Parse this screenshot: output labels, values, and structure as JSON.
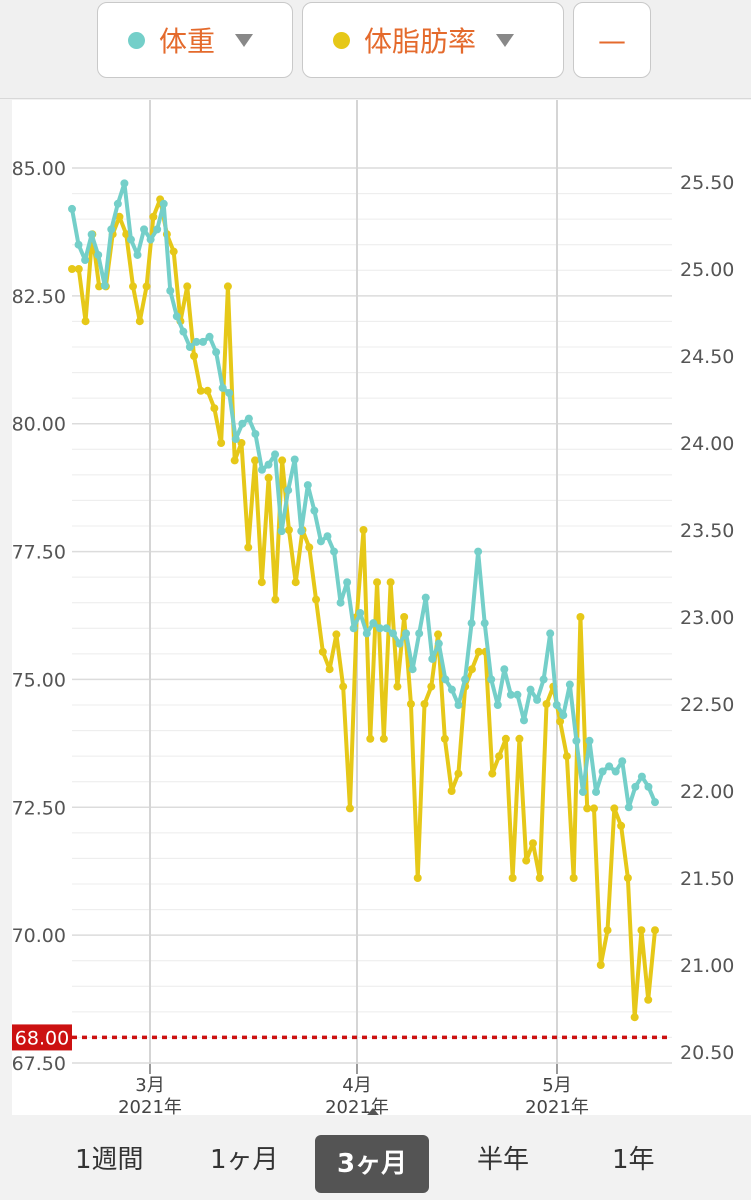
{
  "header": {
    "selector1": {
      "label": "体重",
      "dot_color": "#74cfc9"
    },
    "selector2": {
      "label": "体脂肪率",
      "dot_color": "#e6c818"
    },
    "selector3": {
      "label": "—"
    }
  },
  "periods": [
    "1週間",
    "1ヶ月",
    "3ヶ月",
    "半年",
    "1年"
  ],
  "active_period": "3ヶ月",
  "chart_data": {
    "type": "line",
    "left_axis": {
      "ticks": [
        "85.00",
        "82.50",
        "80.00",
        "77.50",
        "75.00",
        "72.50",
        "70.00",
        "67.50"
      ],
      "min": 67.5,
      "max": 85.0
    },
    "right_axis": {
      "ticks": [
        "25.50",
        "25.00",
        "24.50",
        "24.00",
        "23.50",
        "23.00",
        "22.50",
        "22.00",
        "21.50",
        "21.00",
        "20.50"
      ],
      "min": 20.5,
      "max": 25.5
    },
    "x_labels": [
      {
        "month": "3月",
        "year": "2021年"
      },
      {
        "month": "4月",
        "year": "2021年"
      },
      {
        "month": "5月",
        "year": "2021年"
      }
    ],
    "target_line": {
      "value": 68.0,
      "label": "68.00",
      "color": "#cc1111"
    },
    "series": [
      {
        "name": "体重",
        "color": "#74cfc9",
        "axis": "left",
        "values": [
          84.2,
          83.5,
          83.2,
          83.7,
          83.3,
          82.7,
          83.8,
          84.3,
          84.7,
          83.6,
          83.3,
          83.8,
          83.6,
          83.8,
          84.3,
          82.6,
          82.1,
          81.8,
          81.5,
          81.6,
          81.6,
          81.7,
          81.4,
          80.7,
          80.6,
          79.7,
          80.0,
          80.1,
          79.8,
          79.1,
          79.2,
          79.4,
          77.9,
          78.7,
          79.3,
          77.9,
          78.8,
          78.3,
          77.7,
          77.8,
          77.5,
          76.5,
          76.9,
          76.0,
          76.3,
          75.9,
          76.1,
          76.0,
          76.0,
          75.9,
          75.7,
          75.9,
          75.2,
          75.9,
          76.6,
          75.4,
          75.7,
          75.0,
          74.8,
          74.5,
          75.0,
          76.1,
          77.5,
          76.1,
          75.0,
          74.5,
          75.2,
          74.7,
          74.7,
          74.2,
          74.8,
          74.6,
          75.0,
          75.9,
          74.5,
          74.3,
          74.9,
          73.8,
          72.8,
          73.8,
          72.8,
          73.2,
          73.3,
          73.2,
          73.4,
          72.5,
          72.9,
          73.1,
          72.9,
          72.6
        ]
      },
      {
        "name": "体脂肪率",
        "color": "#e6c818",
        "axis": "right",
        "values": [
          25.0,
          25.0,
          24.7,
          25.2,
          24.9,
          24.9,
          25.2,
          25.3,
          25.2,
          24.9,
          24.7,
          24.9,
          25.3,
          25.4,
          25.2,
          25.1,
          24.7,
          24.9,
          24.5,
          24.3,
          24.3,
          24.2,
          24.0,
          24.9,
          23.9,
          24.0,
          23.4,
          23.9,
          23.2,
          23.8,
          23.1,
          23.9,
          23.5,
          23.2,
          23.5,
          23.4,
          23.1,
          22.8,
          22.7,
          22.9,
          22.6,
          21.9,
          23.0,
          23.5,
          22.3,
          23.2,
          22.3,
          23.2,
          22.6,
          23.0,
          22.5,
          21.5,
          22.5,
          22.6,
          22.9,
          22.3,
          22.0,
          22.1,
          22.6,
          22.7,
          22.8,
          22.8,
          22.1,
          22.2,
          22.3,
          21.5,
          22.3,
          21.6,
          21.7,
          21.5,
          22.5,
          22.6,
          22.4,
          22.2,
          21.5,
          23.0,
          21.9,
          21.9,
          21.0,
          21.2,
          21.9,
          21.8,
          21.5,
          20.7,
          21.2,
          20.8,
          21.2
        ]
      }
    ]
  }
}
